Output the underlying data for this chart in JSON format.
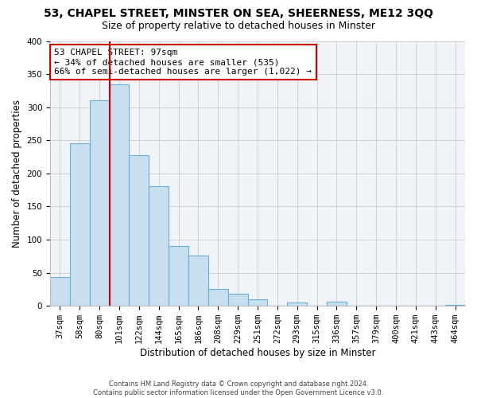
{
  "title": "53, CHAPEL STREET, MINSTER ON SEA, SHEERNESS, ME12 3QQ",
  "subtitle": "Size of property relative to detached houses in Minster",
  "xlabel": "Distribution of detached houses by size in Minster",
  "ylabel": "Number of detached properties",
  "bar_labels": [
    "37sqm",
    "58sqm",
    "80sqm",
    "101sqm",
    "122sqm",
    "144sqm",
    "165sqm",
    "186sqm",
    "208sqm",
    "229sqm",
    "251sqm",
    "272sqm",
    "293sqm",
    "315sqm",
    "336sqm",
    "357sqm",
    "379sqm",
    "400sqm",
    "421sqm",
    "443sqm",
    "464sqm"
  ],
  "bar_values": [
    44,
    246,
    311,
    335,
    228,
    180,
    90,
    76,
    25,
    18,
    10,
    0,
    5,
    0,
    6,
    0,
    0,
    0,
    0,
    0,
    2
  ],
  "bar_color": "#c8dff0",
  "bar_edge_color": "#6baed6",
  "vline_color": "#cc0000",
  "annotation_line1": "53 CHAPEL STREET: 97sqm",
  "annotation_line2": "← 34% of detached houses are smaller (535)",
  "annotation_line3": "66% of semi-detached houses are larger (1,022) →",
  "annotation_box_color": "#ffffff",
  "annotation_box_edge": "#cc0000",
  "ylim": [
    0,
    400
  ],
  "yticks": [
    0,
    50,
    100,
    150,
    200,
    250,
    300,
    350,
    400
  ],
  "grid_color": "#d0d0d0",
  "footer_line1": "Contains HM Land Registry data © Crown copyright and database right 2024.",
  "footer_line2": "Contains public sector information licensed under the Open Government Licence v3.0.",
  "bg_color": "#f0f4f8",
  "title_fontsize": 10,
  "subtitle_fontsize": 9,
  "ylabel_fontsize": 8.5,
  "xlabel_fontsize": 8.5,
  "tick_fontsize": 7.5,
  "annotation_fontsize": 8,
  "footer_fontsize": 6
}
